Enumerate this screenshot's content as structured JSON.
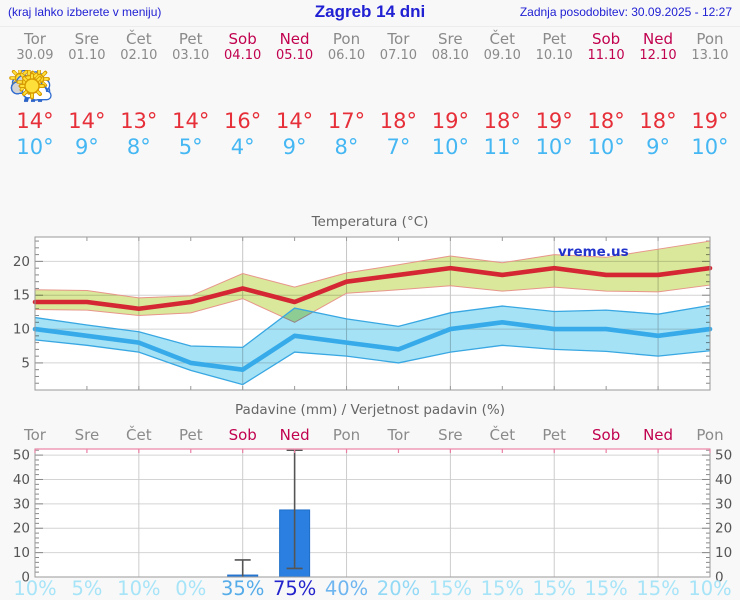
{
  "header": {
    "hint": "(kraj lahko izberete v meniju)",
    "title": "Zagreb 14 dni",
    "updated": "Zadnja posodobitev: 30.09.2025 - 12:27"
  },
  "colors": {
    "header_text": "#2121d4",
    "weekday_label": "#8a8a8a",
    "weekend_label": "#c1024f",
    "tmax_text": "#e62f39",
    "tmin_text": "#45b7f3",
    "red_line": "#d42733",
    "blue_line": "#37abe9",
    "red_band_fill": "#d9e89a",
    "red_band_edge": "#e8958a",
    "blue_band_fill": "#a6e2f6",
    "blue_band_edge": "#38a7e2",
    "bar_fill": "#2a7fe0",
    "whisker": "#555555",
    "frame": "#9a9a9a",
    "grid": "#d4d4d4",
    "pink_frame": "#ef9ab5",
    "pink_tick": "#e87fa4",
    "watermark_text": "#2233cc",
    "sun_fill": "#ffe03a",
    "sun_stroke": "#d79b00",
    "cloud_stroke": "#2f6bd0",
    "cloud_gray": "#d4d4d4",
    "cloud_white": "#ffffff",
    "rain_stroke": "#2a62c8"
  },
  "days": [
    {
      "name": "Tor",
      "date": "30.09",
      "weekend": false,
      "icon": "cloudy",
      "tmax": "14°",
      "tmin": "10°"
    },
    {
      "name": "Sre",
      "date": "01.10",
      "weekend": false,
      "icon": "partly",
      "tmax": "14°",
      "tmin": "9°"
    },
    {
      "name": "Čet",
      "date": "02.10",
      "weekend": false,
      "icon": "partly",
      "tmax": "13°",
      "tmin": "8°"
    },
    {
      "name": "Pet",
      "date": "03.10",
      "weekend": false,
      "icon": "sun",
      "tmax": "14°",
      "tmin": "5°"
    },
    {
      "name": "Sob",
      "date": "04.10",
      "weekend": true,
      "icon": "rain",
      "tmax": "16°",
      "tmin": "4°"
    },
    {
      "name": "Ned",
      "date": "05.10",
      "weekend": true,
      "icon": "sun-rain",
      "tmax": "14°",
      "tmin": "9°"
    },
    {
      "name": "Pon",
      "date": "06.10",
      "weekend": false,
      "icon": "partly",
      "tmax": "17°",
      "tmin": "8°"
    },
    {
      "name": "Tor",
      "date": "07.10",
      "weekend": false,
      "icon": "sun-small-cloud",
      "tmax": "18°",
      "tmin": "7°"
    },
    {
      "name": "Sre",
      "date": "08.10",
      "weekend": false,
      "icon": "sun",
      "tmax": "19°",
      "tmin": "10°"
    },
    {
      "name": "Čet",
      "date": "09.10",
      "weekend": false,
      "icon": "sun",
      "tmax": "18°",
      "tmin": "11°"
    },
    {
      "name": "Pet",
      "date": "10.10",
      "weekend": false,
      "icon": "sun",
      "tmax": "19°",
      "tmin": "10°"
    },
    {
      "name": "Sob",
      "date": "11.10",
      "weekend": true,
      "icon": "sun",
      "tmax": "18°",
      "tmin": "10°"
    },
    {
      "name": "Ned",
      "date": "12.10",
      "weekend": true,
      "icon": "sun",
      "tmax": "18°",
      "tmin": "9°"
    },
    {
      "name": "Pon",
      "date": "13.10",
      "weekend": false,
      "icon": "sun",
      "tmax": "19°",
      "tmin": "10°"
    }
  ],
  "chart_data": [
    {
      "type": "line",
      "title": "Temperatura (°C)",
      "watermark": "vreme.us",
      "categories": [
        "Tor",
        "Sre",
        "Čet",
        "Pet",
        "Sob",
        "Ned",
        "Pon",
        "Tor",
        "Sre",
        "Čet",
        "Pet",
        "Sob",
        "Ned",
        "Pon"
      ],
      "ylim": [
        1,
        23.6
      ],
      "yticks": [
        5,
        10,
        15,
        20
      ],
      "grid_day_indices": [
        2,
        4,
        6,
        8,
        10,
        12
      ],
      "series": [
        {
          "name": "max temperature",
          "values": [
            14,
            14,
            13,
            14,
            16,
            14,
            17,
            18,
            19,
            18,
            19,
            18,
            18,
            19
          ],
          "band_upper": [
            15.8,
            15.7,
            14.6,
            14.9,
            18.2,
            16.2,
            18.3,
            19.5,
            20.8,
            19.8,
            21.0,
            20.6,
            21.8,
            23.0
          ],
          "band_lower": [
            12.9,
            12.8,
            12.0,
            12.4,
            14.5,
            11.0,
            15.3,
            15.8,
            16.4,
            15.6,
            16.2,
            15.6,
            15.5,
            16.5
          ]
        },
        {
          "name": "min temperature",
          "values": [
            10,
            9,
            8,
            5,
            4,
            9,
            8,
            7,
            10,
            11,
            10,
            10,
            9,
            10
          ],
          "band_upper": [
            11.7,
            10.6,
            9.6,
            7.5,
            7.3,
            13.1,
            11.5,
            10.4,
            12.4,
            13.4,
            12.6,
            12.8,
            12.2,
            13.5
          ],
          "band_lower": [
            8.4,
            7.6,
            6.6,
            3.9,
            1.8,
            6.6,
            6.0,
            5.0,
            6.6,
            7.6,
            7.0,
            6.7,
            6.0,
            6.8
          ]
        }
      ]
    },
    {
      "type": "bar",
      "title": "Padavine (mm) / Verjetnost padavin (%)",
      "categories": [
        "Tor",
        "Sre",
        "Čet",
        "Pet",
        "Sob",
        "Ned",
        "Pon",
        "Tor",
        "Sre",
        "Čet",
        "Pet",
        "Sob",
        "Ned",
        "Pon"
      ],
      "ylim": [
        0,
        52.5
      ],
      "yticks": [
        0,
        10,
        20,
        30,
        40,
        50
      ],
      "grid_day_indices": [
        2,
        4,
        6,
        8,
        10,
        12
      ],
      "values": [
        0,
        0,
        0,
        0,
        0.8,
        27.5,
        0,
        0,
        0,
        0,
        0,
        0,
        0,
        0
      ],
      "whiskers": [
        {
          "day": 4,
          "low": 0,
          "high": 7
        },
        {
          "day": 5,
          "low": 3.5,
          "high": 52
        }
      ],
      "probabilities": [
        {
          "label": "10%",
          "color": "#a7e4f8"
        },
        {
          "label": "5%",
          "color": "#a7e4f8"
        },
        {
          "label": "10%",
          "color": "#a7e4f8"
        },
        {
          "label": "0%",
          "color": "#a7e4f8"
        },
        {
          "label": "35%",
          "color": "#55ace9"
        },
        {
          "label": "75%",
          "color": "#2424cd"
        },
        {
          "label": "40%",
          "color": "#6fb6f0"
        },
        {
          "label": "20%",
          "color": "#92d9f6"
        },
        {
          "label": "15%",
          "color": "#a7e4f8"
        },
        {
          "label": "15%",
          "color": "#a7e4f8"
        },
        {
          "label": "15%",
          "color": "#a7e4f8"
        },
        {
          "label": "15%",
          "color": "#a7e4f8"
        },
        {
          "label": "15%",
          "color": "#a7e4f8"
        },
        {
          "label": "10%",
          "color": "#a7e4f8"
        }
      ]
    }
  ]
}
